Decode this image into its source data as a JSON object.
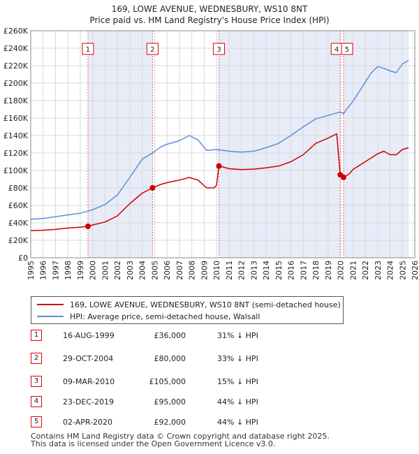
{
  "chart_data": {
    "type": "line",
    "title": "169, LOWE AVENUE, WEDNESBURY, WS10 8NT",
    "subtitle": "Price paid vs. HM Land Registry's House Price Index (HPI)",
    "xlabel": "",
    "ylabel": "",
    "xlim": [
      1995,
      2026
    ],
    "ylim": [
      0,
      260000
    ],
    "x_ticks": [
      1995,
      1996,
      1997,
      1998,
      1999,
      2000,
      2001,
      2002,
      2003,
      2004,
      2005,
      2006,
      2007,
      2008,
      2009,
      2010,
      2011,
      2012,
      2013,
      2014,
      2015,
      2016,
      2017,
      2018,
      2019,
      2020,
      2021,
      2022,
      2023,
      2024,
      2025,
      2026
    ],
    "y_ticks": [
      {
        "value": 0,
        "label": "£0"
      },
      {
        "value": 20000,
        "label": "£20K"
      },
      {
        "value": 40000,
        "label": "£40K"
      },
      {
        "value": 60000,
        "label": "£60K"
      },
      {
        "value": 80000,
        "label": "£80K"
      },
      {
        "value": 100000,
        "label": "£100K"
      },
      {
        "value": 120000,
        "label": "£120K"
      },
      {
        "value": 140000,
        "label": "£140K"
      },
      {
        "value": 160000,
        "label": "£160K"
      },
      {
        "value": 180000,
        "label": "£180K"
      },
      {
        "value": 200000,
        "label": "£200K"
      },
      {
        "value": 220000,
        "label": "£220K"
      },
      {
        "value": 240000,
        "label": "£240K"
      },
      {
        "value": 260000,
        "label": "£260K"
      }
    ],
    "grid": true,
    "shaded_periods": [
      [
        1999.62,
        2004.83
      ],
      [
        2010.19,
        2019.98
      ],
      [
        2020.25,
        2025.5
      ]
    ],
    "series": [
      {
        "name": "169, LOWE AVENUE, WEDNESBURY, WS10 8NT (semi-detached house)",
        "color": "#cc0000",
        "points": [
          [
            1995.0,
            31000
          ],
          [
            1996.0,
            31500
          ],
          [
            1997.0,
            32500
          ],
          [
            1998.0,
            34000
          ],
          [
            1999.0,
            35000
          ],
          [
            1999.62,
            36000
          ],
          [
            2000.0,
            37500
          ],
          [
            2001.0,
            41000
          ],
          [
            2002.0,
            48000
          ],
          [
            2003.0,
            62000
          ],
          [
            2004.0,
            74000
          ],
          [
            2004.83,
            80000
          ],
          [
            2005.5,
            84000
          ],
          [
            2006.0,
            86000
          ],
          [
            2007.0,
            89000
          ],
          [
            2007.8,
            92000
          ],
          [
            2008.5,
            89000
          ],
          [
            2009.2,
            80000
          ],
          [
            2009.8,
            80000
          ],
          [
            2010.0,
            83000
          ],
          [
            2010.19,
            105000
          ],
          [
            2010.5,
            104000
          ],
          [
            2011.0,
            102000
          ],
          [
            2012.0,
            101000
          ],
          [
            2013.0,
            101500
          ],
          [
            2014.0,
            103000
          ],
          [
            2015.0,
            105000
          ],
          [
            2016.0,
            110000
          ],
          [
            2017.0,
            118000
          ],
          [
            2018.0,
            131000
          ],
          [
            2019.0,
            137000
          ],
          [
            2019.7,
            142000
          ],
          [
            2019.98,
            95000
          ],
          [
            2020.1,
            94000
          ],
          [
            2020.25,
            92000
          ],
          [
            2020.7,
            96000
          ],
          [
            2021.0,
            101000
          ],
          [
            2022.0,
            110000
          ],
          [
            2023.0,
            119000
          ],
          [
            2023.5,
            122000
          ],
          [
            2024.0,
            118000
          ],
          [
            2024.5,
            118000
          ],
          [
            2025.0,
            124000
          ],
          [
            2025.5,
            126000
          ]
        ]
      },
      {
        "name": "HPI: Average price, semi-detached house, Walsall",
        "color": "#5b8fd6",
        "points": [
          [
            1995.0,
            44000
          ],
          [
            1996.0,
            45000
          ],
          [
            1997.0,
            47000
          ],
          [
            1998.0,
            49000
          ],
          [
            1999.0,
            51000
          ],
          [
            2000.0,
            55000
          ],
          [
            2001.0,
            61000
          ],
          [
            2002.0,
            72000
          ],
          [
            2003.0,
            92000
          ],
          [
            2004.0,
            113000
          ],
          [
            2004.83,
            120000
          ],
          [
            2005.5,
            127000
          ],
          [
            2006.0,
            130000
          ],
          [
            2007.0,
            134000
          ],
          [
            2007.8,
            140000
          ],
          [
            2008.5,
            135000
          ],
          [
            2009.2,
            123000
          ],
          [
            2010.0,
            124000
          ],
          [
            2011.0,
            122000
          ],
          [
            2012.0,
            121000
          ],
          [
            2013.0,
            122000
          ],
          [
            2014.0,
            126000
          ],
          [
            2015.0,
            131000
          ],
          [
            2016.0,
            140000
          ],
          [
            2017.0,
            150000
          ],
          [
            2018.0,
            159000
          ],
          [
            2019.0,
            163000
          ],
          [
            2019.98,
            167000
          ],
          [
            2020.25,
            165000
          ],
          [
            2020.6,
            172000
          ],
          [
            2021.0,
            179000
          ],
          [
            2021.5,
            190000
          ],
          [
            2022.0,
            201000
          ],
          [
            2022.5,
            212000
          ],
          [
            2023.0,
            219000
          ],
          [
            2023.5,
            217000
          ],
          [
            2024.0,
            214000
          ],
          [
            2024.5,
            212000
          ],
          [
            2025.0,
            222000
          ],
          [
            2025.5,
            226000
          ]
        ]
      }
    ],
    "sale_markers": [
      {
        "label": "1",
        "year": 1999.62,
        "price": 36000
      },
      {
        "label": "2",
        "year": 2004.83,
        "price": 80000
      },
      {
        "label": "3",
        "year": 2010.19,
        "price": 105000
      },
      {
        "label": "4",
        "year": 2019.98,
        "price": 95000
      },
      {
        "label": "5",
        "year": 2020.25,
        "price": 92000
      }
    ]
  },
  "legend": {
    "property_label": "169, LOWE AVENUE, WEDNESBURY, WS10 8NT (semi-detached house)",
    "hpi_label": "HPI: Average price, semi-detached house, Walsall"
  },
  "sales": [
    {
      "num": "1",
      "date": "16-AUG-1999",
      "price": "£36,000",
      "hpi": "31% ↓ HPI"
    },
    {
      "num": "2",
      "date": "29-OCT-2004",
      "price": "£80,000",
      "hpi": "33% ↓ HPI"
    },
    {
      "num": "3",
      "date": "09-MAR-2010",
      "price": "£105,000",
      "hpi": "15% ↓ HPI"
    },
    {
      "num": "4",
      "date": "23-DEC-2019",
      "price": "£95,000",
      "hpi": "44% ↓ HPI"
    },
    {
      "num": "5",
      "date": "02-APR-2020",
      "price": "£92,000",
      "hpi": "44% ↓ HPI"
    }
  ],
  "footer": {
    "line1": "Contains HM Land Registry data © Crown copyright and database right 2025.",
    "line2": "This data is licensed under the Open Government Licence v3.0."
  }
}
